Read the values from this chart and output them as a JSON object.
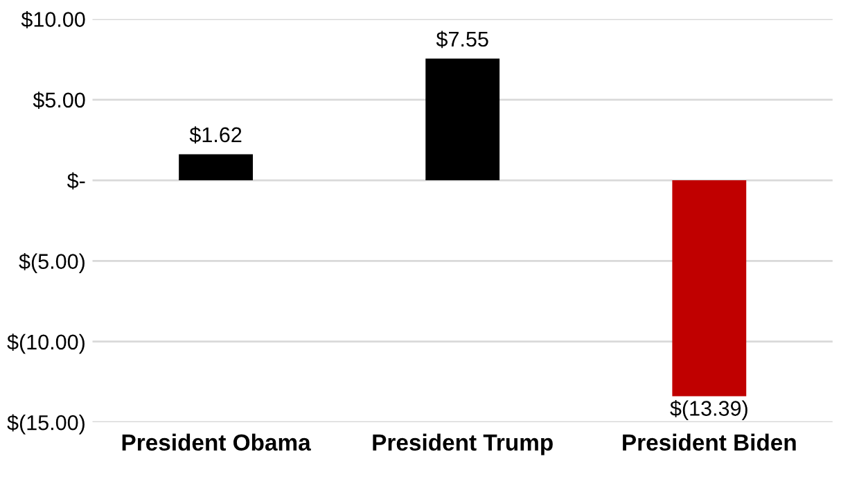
{
  "chart_data": {
    "type": "bar",
    "categories": [
      "President Obama",
      "President Trump",
      "President Biden"
    ],
    "values": [
      1.62,
      7.55,
      -13.39
    ],
    "colors": [
      "#000000",
      "#000000",
      "#c00000"
    ],
    "value_labels": [
      "$1.62",
      "$7.55",
      "$(13.39)"
    ],
    "ylim": [
      -15,
      10
    ],
    "yticks": [
      {
        "value": 10,
        "label": "$10.00"
      },
      {
        "value": 5,
        "label": "$5.00"
      },
      {
        "value": 0,
        "label": "$-"
      },
      {
        "value": -5,
        "label": "$(5.00)"
      },
      {
        "value": -10,
        "label": "$(10.00)"
      },
      {
        "value": -15,
        "label": "$(15.00)"
      }
    ],
    "grid": "y"
  }
}
